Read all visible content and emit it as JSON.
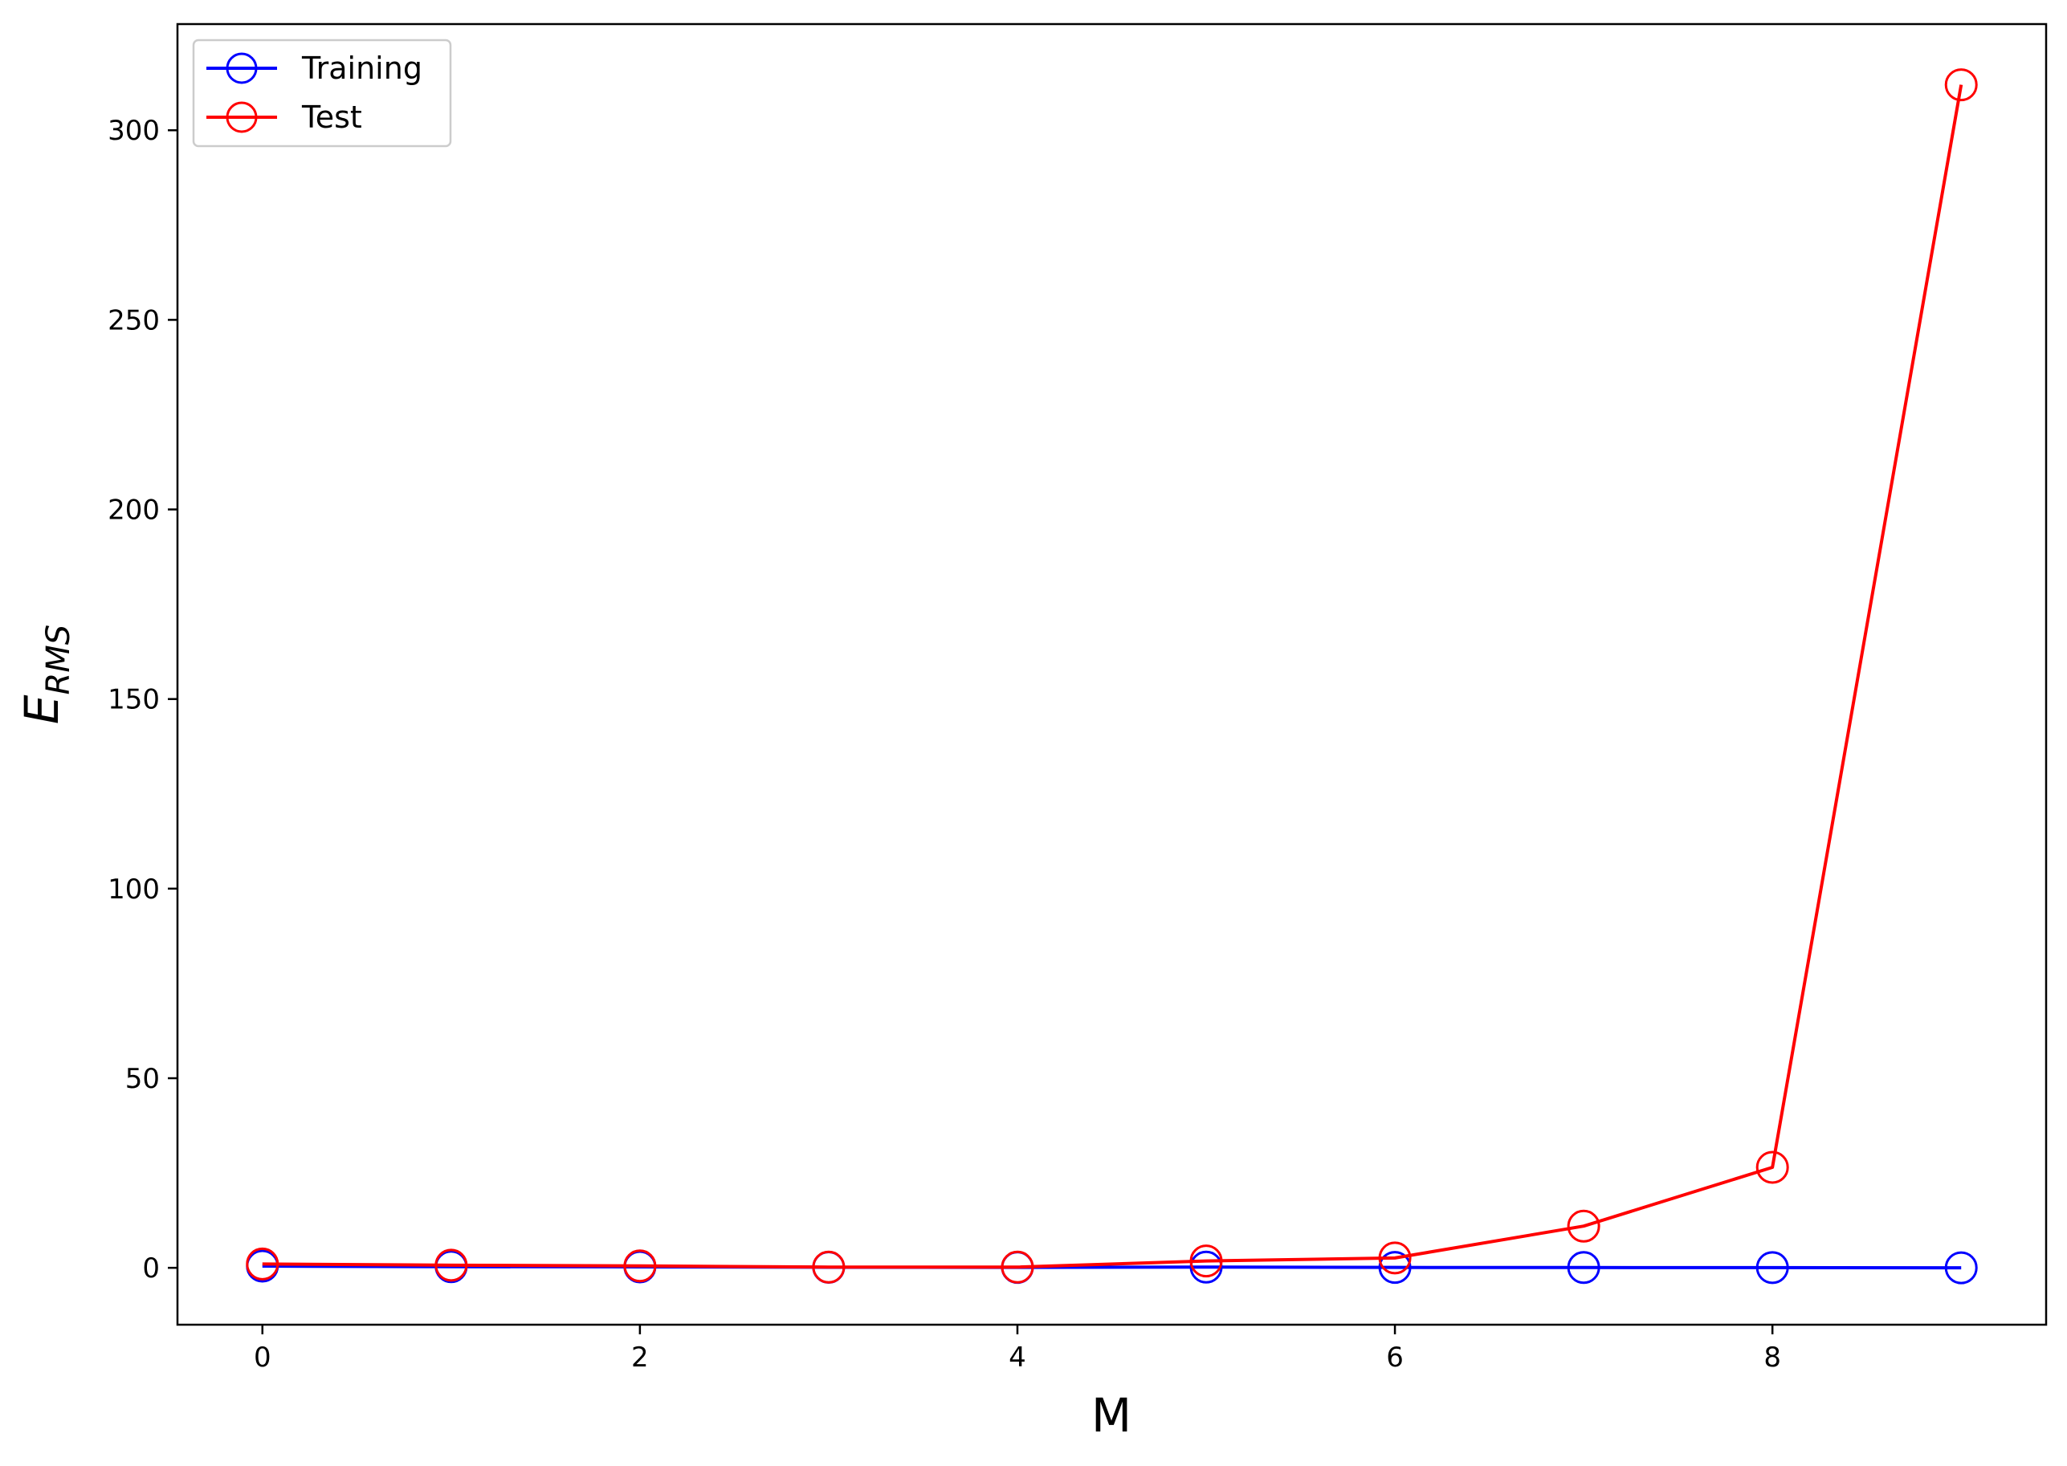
{
  "chart_data": {
    "type": "line",
    "title": "",
    "xlabel": "M",
    "ylabel": {
      "main": "E",
      "subscript": "RMS"
    },
    "x": [
      0,
      1,
      2,
      3,
      4,
      5,
      6,
      7,
      8,
      9
    ],
    "xlim": [
      -0.45,
      9.45
    ],
    "ylim": [
      -15,
      328
    ],
    "xticks": [
      0,
      2,
      4,
      6,
      8
    ],
    "xtick_labels": [
      "0",
      "2",
      "4",
      "6",
      "8"
    ],
    "yticks": [
      0,
      50,
      100,
      150,
      200,
      250,
      300
    ],
    "ytick_labels": [
      "0",
      "50",
      "100",
      "150",
      "200",
      "250",
      "300"
    ],
    "grid": false,
    "legend_position": "top-left",
    "series": [
      {
        "name": "Training",
        "color": "#0000ff",
        "marker": "open-circle",
        "values": [
          0.45,
          0.3,
          0.25,
          0.15,
          0.1,
          0.2,
          0.1,
          0.08,
          0.05,
          0.0
        ]
      },
      {
        "name": "Test",
        "color": "#ff0000",
        "marker": "open-circle",
        "values": [
          1.0,
          0.7,
          0.5,
          0.2,
          0.2,
          1.8,
          2.6,
          11.0,
          26.5,
          312.0
        ]
      }
    ]
  }
}
